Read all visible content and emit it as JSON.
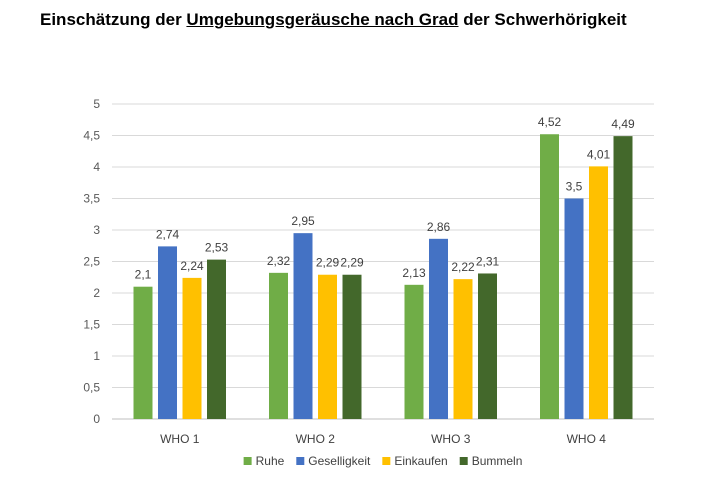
{
  "title_parts": [
    "Einschätzung der ",
    "Umgebungsgeräusche nach Grad",
    " der Schwerhörigkeit"
  ],
  "chart_data": {
    "type": "bar",
    "title": "Einschätzung der Umgebungsgeräusche nach Grad der Schwerhörigkeit",
    "categories": [
      "WHO 1",
      "WHO 2",
      "WHO 3",
      "WHO 4"
    ],
    "series": [
      {
        "name": "Ruhe",
        "color": "#70ad47",
        "values": [
          2.1,
          2.32,
          2.13,
          4.52
        ],
        "labels": [
          "2,1",
          "2,32",
          "2,13",
          "4,52"
        ]
      },
      {
        "name": "Geselligkeit",
        "color": "#4472c4",
        "values": [
          2.74,
          2.95,
          2.86,
          3.5
        ],
        "labels": [
          "2,74",
          "2,95",
          "2,86",
          "3,5"
        ]
      },
      {
        "name": "Einkaufen",
        "color": "#ffc000",
        "values": [
          2.24,
          2.29,
          2.22,
          4.01
        ],
        "labels": [
          "2,24",
          "2,29",
          "2,22",
          "4,01"
        ]
      },
      {
        "name": "Bummeln",
        "color": "#43682b",
        "values": [
          2.53,
          2.29,
          2.31,
          4.49
        ],
        "labels": [
          "2,53",
          "2,29",
          "2,31",
          "4,49"
        ]
      }
    ],
    "ylim": [
      0,
      5
    ],
    "yticks": [
      "0",
      "0,5",
      "1",
      "1,5",
      "2",
      "2,5",
      "3",
      "3,5",
      "4",
      "4,5",
      "5"
    ],
    "grid": true,
    "legend_position": "bottom"
  }
}
